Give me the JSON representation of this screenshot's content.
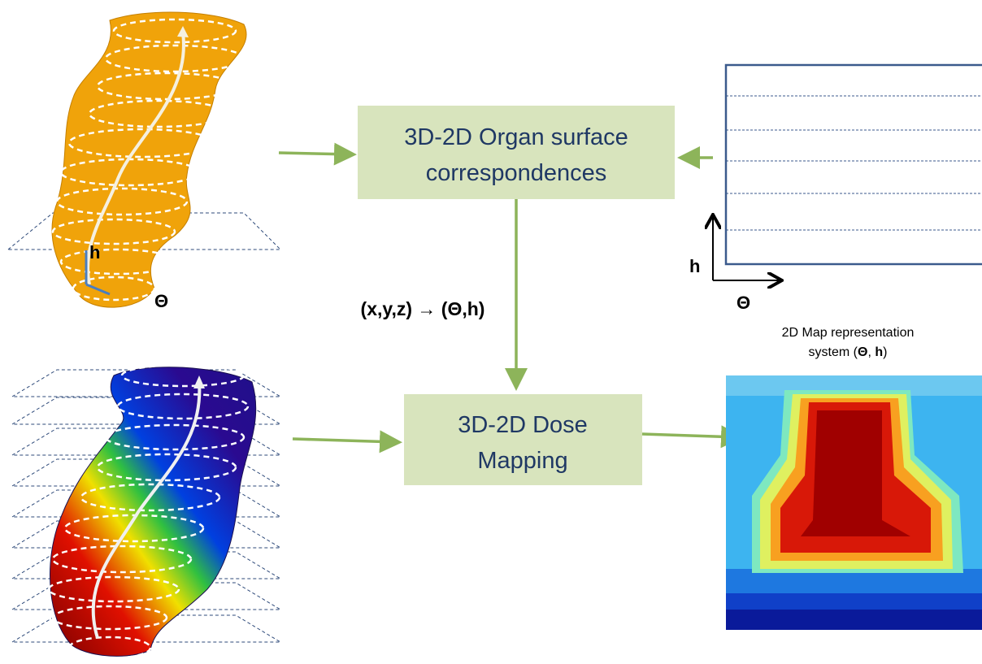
{
  "boxes": [
    {
      "lines": [
        "3D-2D Organ surface",
        "correspondences"
      ]
    },
    {
      "lines": [
        "3D-2D Dose",
        "Mapping"
      ]
    }
  ],
  "transform_label": "(x,y,z) → (Θ,h)",
  "organ_axes": {
    "h": "h",
    "theta": "Θ"
  },
  "map_axes": {
    "h": "h",
    "theta": "Θ"
  },
  "map_caption": {
    "line1": "2D Map representation",
    "line2": [
      "system (",
      "Θ",
      ", ",
      "h",
      ")"
    ]
  }
}
